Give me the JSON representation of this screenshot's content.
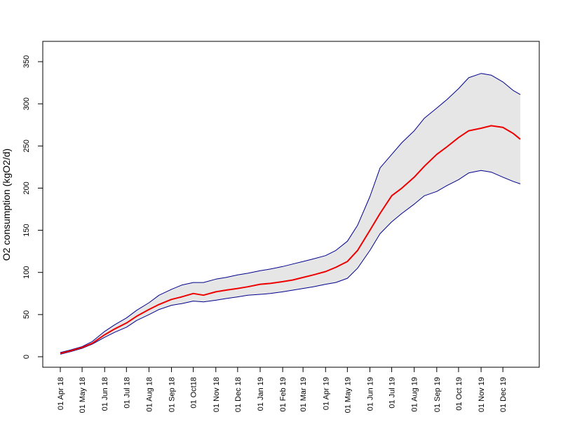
{
  "chart_data": {
    "type": "line",
    "title": "",
    "xlabel": "",
    "ylabel": "O2 consumption (kgO2/d)",
    "xlim": [
      "2018-04-01",
      "2019-12-25"
    ],
    "ylim": [
      -10,
      370
    ],
    "y_ticks": [
      0,
      50,
      100,
      150,
      200,
      250,
      300,
      350
    ],
    "x_ticks": [
      {
        "date": "2018-04-01",
        "label": "01 Apr 18"
      },
      {
        "date": "2018-05-01",
        "label": "01 May 18"
      },
      {
        "date": "2018-06-01",
        "label": "01 Jun 18"
      },
      {
        "date": "2018-07-01",
        "label": "01 Jul 18"
      },
      {
        "date": "2018-08-01",
        "label": "01 Aug 18"
      },
      {
        "date": "2018-09-01",
        "label": "01 Sep 18"
      },
      {
        "date": "2018-10-01",
        "label": "01 Oct18"
      },
      {
        "date": "2018-11-01",
        "label": "01 Nov 18"
      },
      {
        "date": "2018-12-01",
        "label": "01 Dec 18"
      },
      {
        "date": "2019-01-01",
        "label": "01 Jan 19"
      },
      {
        "date": "2019-02-01",
        "label": "01 Feb 19"
      },
      {
        "date": "2019-03-01",
        "label": "01 Mar 19"
      },
      {
        "date": "2019-04-01",
        "label": "01 Apr 19"
      },
      {
        "date": "2019-05-01",
        "label": "01 May 19"
      },
      {
        "date": "2019-06-01",
        "label": "01 Jun 19"
      },
      {
        "date": "2019-07-01",
        "label": "01 Jul 19"
      },
      {
        "date": "2019-08-01",
        "label": "01 Aug 19"
      },
      {
        "date": "2019-09-01",
        "label": "01 Sep 19"
      },
      {
        "date": "2019-10-01",
        "label": "01 Oct 19"
      },
      {
        "date": "2019-11-01",
        "label": "01 Nov 19"
      },
      {
        "date": "2019-12-01",
        "label": "01 Dec 19"
      }
    ],
    "x": [
      "2018-04-01",
      "2018-04-15",
      "2018-05-01",
      "2018-05-15",
      "2018-06-01",
      "2018-06-15",
      "2018-07-01",
      "2018-07-15",
      "2018-08-01",
      "2018-08-15",
      "2018-09-01",
      "2018-09-15",
      "2018-10-01",
      "2018-10-15",
      "2018-11-01",
      "2018-11-15",
      "2018-12-01",
      "2018-12-15",
      "2019-01-01",
      "2019-01-15",
      "2019-02-01",
      "2019-02-15",
      "2019-03-01",
      "2019-03-15",
      "2019-04-01",
      "2019-04-15",
      "2019-05-01",
      "2019-05-15",
      "2019-06-01",
      "2019-06-15",
      "2019-07-01",
      "2019-07-15",
      "2019-08-01",
      "2019-08-15",
      "2019-09-01",
      "2019-09-15",
      "2019-10-01",
      "2019-10-15",
      "2019-11-01",
      "2019-11-15",
      "2019-12-01",
      "2019-12-15",
      "2019-12-25"
    ],
    "series": [
      {
        "role": "mean",
        "color": "#ee0000",
        "values": [
          4,
          7,
          11,
          16,
          26,
          33,
          40,
          48,
          56,
          62,
          68,
          71,
          75,
          73,
          77,
          79,
          81,
          83,
          86,
          87,
          89,
          91,
          94,
          97,
          101,
          106,
          113,
          126,
          150,
          170,
          191,
          200,
          213,
          226,
          240,
          249,
          260,
          268,
          271,
          274,
          272,
          265,
          258
        ]
      },
      {
        "role": "upper",
        "color": "#00008b",
        "values": [
          5,
          8,
          12,
          18,
          30,
          38,
          46,
          55,
          64,
          73,
          80,
          85,
          88,
          88,
          92,
          94,
          97,
          99,
          102,
          104,
          107,
          110,
          113,
          116,
          120,
          126,
          137,
          156,
          190,
          224,
          240,
          254,
          268,
          283,
          295,
          305,
          318,
          331,
          336,
          334,
          326,
          316,
          311
        ]
      },
      {
        "role": "lower",
        "color": "#00008b",
        "values": [
          3,
          6,
          10,
          15,
          23,
          29,
          35,
          43,
          50,
          56,
          61,
          63,
          66,
          65,
          67,
          69,
          71,
          73,
          74,
          75,
          77,
          79,
          81,
          83,
          86,
          88,
          93,
          105,
          126,
          146,
          160,
          170,
          181,
          191,
          196,
          203,
          210,
          218,
          221,
          219,
          213,
          208,
          205
        ]
      }
    ],
    "band_fill": "#e6e6e6"
  }
}
